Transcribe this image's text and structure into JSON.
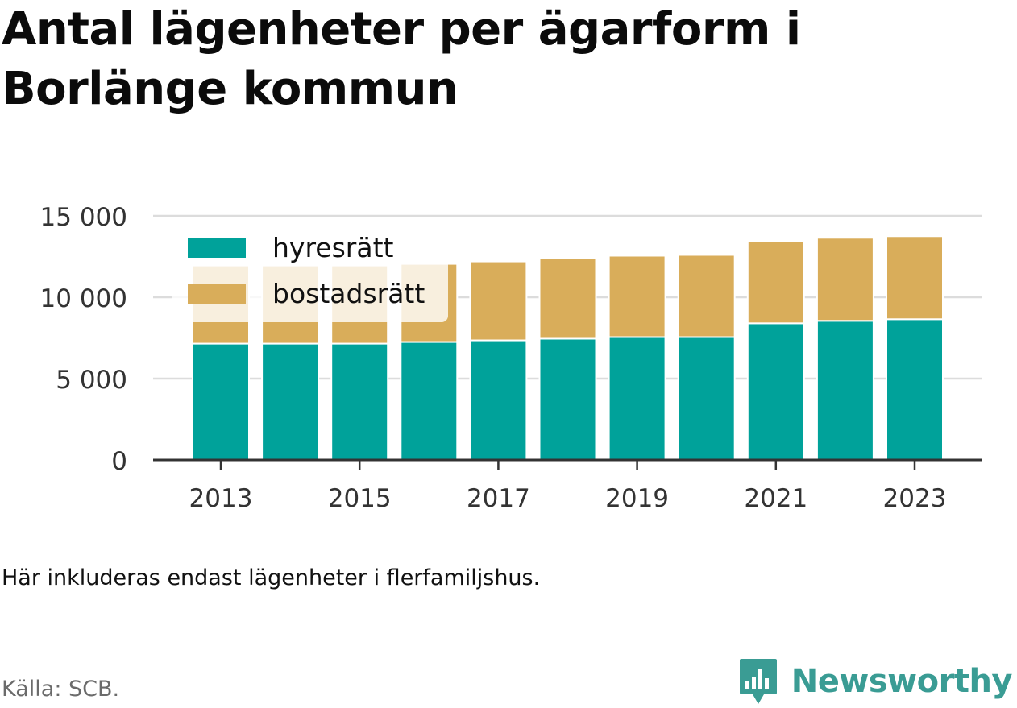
{
  "title": "Antal lägenheter per ägarform i Borlänge kommun",
  "note": "Här inkluderas endast lägenheter i flerfamiljshus.",
  "source": "Källa: SCB.",
  "brand": "Newsworthy",
  "colors": {
    "hyresratt": "#00a29a",
    "bostadsratt": "#d9ad5a",
    "grid": "#dcdcdc",
    "axis": "#333333",
    "brand": "#3a9c94"
  },
  "chart_data": {
    "type": "bar",
    "stacked": true,
    "categories": [
      "2013",
      "2014",
      "2015",
      "2016",
      "2017",
      "2018",
      "2019",
      "2020",
      "2021",
      "2022",
      "2023"
    ],
    "series": [
      {
        "name": "hyresrätt",
        "values": [
          7150,
          7150,
          7150,
          7250,
          7350,
          7450,
          7550,
          7550,
          8400,
          8550,
          8650
        ]
      },
      {
        "name": "bostadsrätt",
        "values": [
          4800,
          4800,
          4800,
          4800,
          4850,
          4950,
          5000,
          5050,
          5050,
          5100,
          5100
        ]
      }
    ],
    "ylim": [
      0,
      15000
    ],
    "yticks": [
      0,
      5000,
      10000,
      15000
    ],
    "ytick_labels": [
      "0",
      "5 000",
      "10 000",
      "15 000"
    ],
    "xtick_labels": [
      "2013",
      "2015",
      "2017",
      "2019",
      "2021",
      "2023"
    ],
    "grid": true,
    "legend": "top-left"
  }
}
